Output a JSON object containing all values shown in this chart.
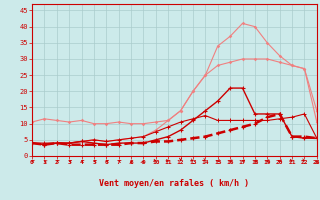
{
  "x": [
    0,
    1,
    2,
    3,
    4,
    5,
    6,
    7,
    8,
    9,
    10,
    11,
    12,
    13,
    14,
    15,
    16,
    17,
    18,
    19,
    20,
    21,
    22,
    23
  ],
  "line_pink1": [
    10.5,
    11.5,
    11,
    10.5,
    11,
    10,
    10,
    10.5,
    10,
    10,
    10.5,
    11,
    14,
    20,
    25,
    28,
    29,
    30,
    30,
    30,
    29,
    28,
    27,
    14
  ],
  "line_pink2": [
    4,
    3.5,
    4,
    4,
    4.5,
    5,
    4.5,
    5,
    5.5,
    6,
    8,
    11,
    14,
    20,
    25,
    34,
    37,
    41,
    40,
    35,
    31,
    28,
    27,
    10.5
  ],
  "line_red1": [
    4,
    3.5,
    4,
    4,
    4.5,
    4,
    3.5,
    4,
    4,
    4,
    5,
    6,
    8,
    11,
    14,
    17,
    21,
    21,
    13,
    13,
    13,
    6,
    5.5,
    5.5
  ],
  "line_red2": [
    4,
    3.5,
    4,
    3.5,
    3.5,
    3.5,
    3.5,
    3.5,
    4,
    4,
    4.5,
    4.5,
    5,
    5.5,
    6,
    7,
    8,
    9,
    10,
    12,
    13,
    6,
    6,
    5.5
  ],
  "line_red3": [
    4,
    4,
    4,
    4,
    4.5,
    5,
    4.5,
    5,
    5.5,
    6,
    7.5,
    9,
    10.5,
    11.5,
    12.5,
    11,
    11,
    11,
    11,
    11,
    11.5,
    12,
    13,
    5.5
  ],
  "bg_color": "#cceaea",
  "grid_color": "#aacccc",
  "pink_color": "#f08080",
  "red_color": "#cc0000",
  "xlabel": "Vent moyen/en rafales ( km/h )",
  "ylim": [
    0,
    47
  ],
  "xlim": [
    0,
    23
  ],
  "yticks": [
    0,
    5,
    10,
    15,
    20,
    25,
    30,
    35,
    40,
    45
  ],
  "xticks": [
    0,
    1,
    2,
    3,
    4,
    5,
    6,
    7,
    8,
    9,
    10,
    11,
    12,
    13,
    14,
    15,
    16,
    17,
    18,
    19,
    20,
    21,
    22,
    23
  ],
  "arrow_angles": [
    225,
    210,
    220,
    215,
    220,
    215,
    225,
    220,
    180,
    170,
    45,
    60,
    0,
    30,
    20,
    270,
    250,
    240,
    240,
    270,
    270,
    45,
    30,
    180
  ]
}
